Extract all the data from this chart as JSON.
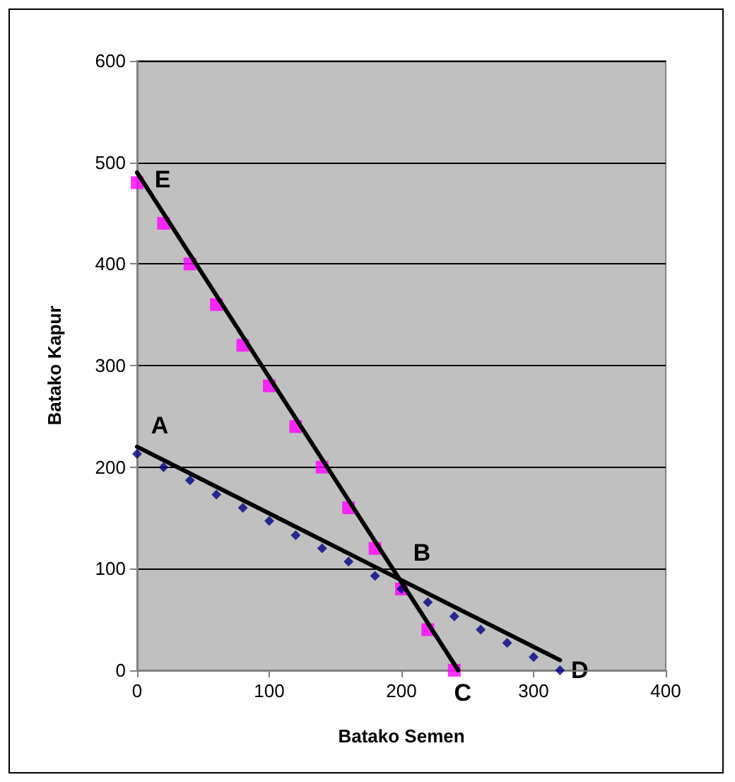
{
  "chart_data": {
    "type": "scatter",
    "xlabel": "Batako Semen",
    "ylabel": "Batako Kapur",
    "xlim": [
      0,
      400
    ],
    "xticks": [
      0,
      100,
      200,
      300,
      400
    ],
    "ylim": [
      0,
      600
    ],
    "yticks": [
      0,
      100,
      200,
      300,
      400,
      500,
      600
    ],
    "grid": "y",
    "series": [
      {
        "marker": "square",
        "color": "#ff00ff",
        "x": [
          0,
          20,
          40,
          60,
          80,
          100,
          120,
          140,
          160,
          180,
          200,
          220,
          240
        ],
        "values": [
          480,
          440,
          400,
          360,
          320,
          280,
          240,
          200,
          160,
          120,
          80,
          40,
          0
        ]
      },
      {
        "marker": "diamond",
        "color": "#000080",
        "x": [
          0,
          20,
          40,
          60,
          80,
          100,
          120,
          140,
          160,
          180,
          200,
          220,
          240,
          260,
          280,
          300,
          320
        ],
        "values": [
          213,
          200,
          187,
          173,
          160,
          147,
          133,
          120,
          107,
          93,
          80,
          67,
          53,
          40,
          27,
          13,
          0
        ]
      },
      {
        "type": "line",
        "marker": "none",
        "color": "#000000",
        "x": [
          0,
          243
        ],
        "values": [
          490,
          0
        ]
      },
      {
        "type": "line",
        "marker": "none",
        "color": "#000000",
        "x": [
          0,
          320
        ],
        "values": [
          220,
          10
        ]
      }
    ],
    "annotations": [
      {
        "text": "A",
        "x": 0,
        "y": 213
      },
      {
        "text": "B",
        "x": 192,
        "y": 96
      },
      {
        "text": "C",
        "x": 240,
        "y": 0
      },
      {
        "text": "D",
        "x": 320,
        "y": 0
      },
      {
        "text": "E",
        "x": 0,
        "y": 480
      }
    ]
  }
}
